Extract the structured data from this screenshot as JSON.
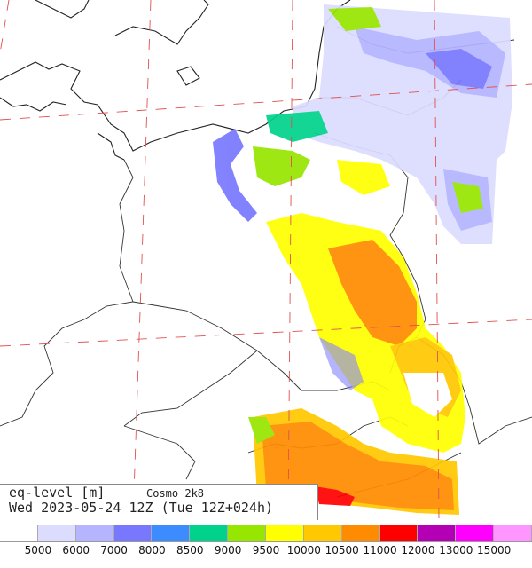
{
  "map": {
    "title_line1": "eq-level [m]",
    "model": "Cosmo 2k8",
    "title_line2": "Wed 2023-05-24 12Z (Tue 12Z+024h)"
  },
  "legend": {
    "colors": [
      "#ffffff",
      "#dcdcff",
      "#b4b4ff",
      "#7878ff",
      "#3c8cff",
      "#00d28c",
      "#96e600",
      "#ffff00",
      "#ffc800",
      "#ff8c00",
      "#ff0000",
      "#b400b4",
      "#ff00ff",
      "#ff96ff"
    ],
    "labels": [
      "5000",
      "6000",
      "7000",
      "8000",
      "8500",
      "9000",
      "9500",
      "10000",
      "10500",
      "11000",
      "12000",
      "13000",
      "15000"
    ]
  }
}
